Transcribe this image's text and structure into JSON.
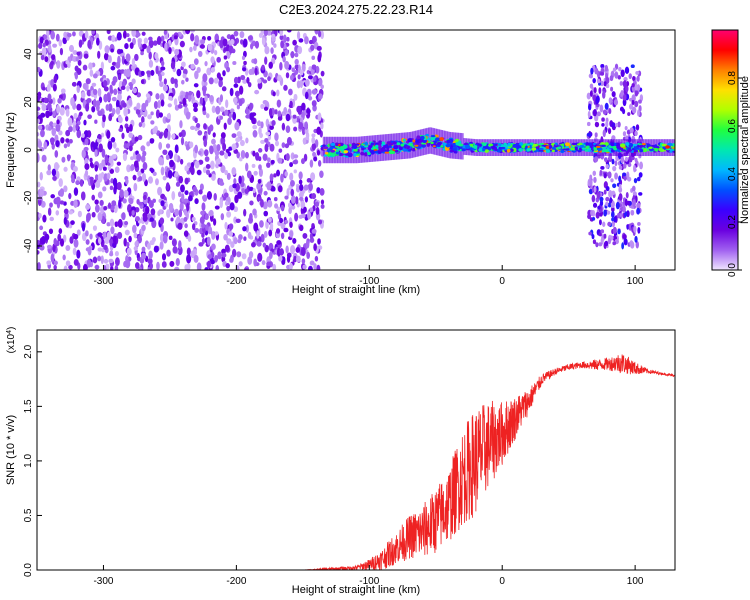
{
  "title": "C2E3.2024.275.22.23.R14",
  "chart_data": [
    {
      "type": "heatmap",
      "xlabel": "Height of straight line (km)",
      "ylabel": "Frequency (Hz)",
      "xlim": [
        -350,
        130
      ],
      "ylim": [
        -50,
        50
      ],
      "xticks": [
        -300,
        -200,
        -100,
        0,
        100
      ],
      "yticks": [
        -40,
        -20,
        0,
        20,
        40
      ],
      "colorbar": {
        "label": "Normalized spectral amplitude",
        "range": [
          0,
          1
        ],
        "ticks": [
          "0.0",
          "0.2",
          "0.4",
          "0.6",
          "0.8"
        ],
        "tick_values": [
          0,
          0.2,
          0.4,
          0.6,
          0.8
        ],
        "colors": [
          "#f0e6ff",
          "#a060f0",
          "#6a00e0",
          "#3a00ff",
          "#0050ff",
          "#00b8ff",
          "#00e8b0",
          "#20ff40",
          "#b0ff00",
          "#ffe000",
          "#ff8000",
          "#ff0000",
          "#ff0070"
        ]
      },
      "regions": [
        {
          "x": [
            -350,
            -135
          ],
          "y": [
            -50,
            50
          ],
          "amplitude": [
            0.03,
            0.2
          ]
        },
        {
          "x": [
            -135,
            130
          ],
          "y": [
            -4,
            4
          ],
          "amplitude": [
            0.15,
            0.85
          ]
        },
        {
          "x": [
            65,
            105
          ],
          "y": [
            -40,
            35
          ],
          "amplitude": [
            0.05,
            0.3
          ]
        }
      ],
      "band_center": [
        {
          "x": -135,
          "y": 0
        },
        {
          "x": -110,
          "y": 0
        },
        {
          "x": -90,
          "y": 1
        },
        {
          "x": -70,
          "y": 2
        },
        {
          "x": -55,
          "y": 4
        },
        {
          "x": -40,
          "y": 2
        },
        {
          "x": -20,
          "y": 1
        },
        {
          "x": 0,
          "y": 1
        },
        {
          "x": 50,
          "y": 1
        },
        {
          "x": 130,
          "y": 1
        }
      ]
    },
    {
      "type": "line",
      "xlabel": "Height of straight line (km)",
      "ylabel": "SNR (10 * v/v)",
      "scale_note": "(x10",
      "scale_exp": "4",
      "scale_close": ")",
      "xlim": [
        -350,
        130
      ],
      "ylim": [
        0,
        2.2
      ],
      "xticks": [
        -300,
        -200,
        -100,
        0,
        100
      ],
      "yticks": [
        "0.0",
        "0.5",
        "1.0",
        "1.5",
        "2.0"
      ],
      "ytick_values": [
        0,
        0.5,
        1.0,
        1.5,
        2.0
      ],
      "line_color": "#ee2222",
      "series": [
        {
          "x": [
            -350,
            -150,
            -110,
            -100,
            -90,
            -80,
            -70,
            -60,
            -50,
            -40,
            -30,
            -20,
            -10,
            0,
            10,
            20,
            30,
            40,
            50,
            60,
            70,
            80,
            90,
            100,
            110,
            120,
            130
          ],
          "y": [
            0.0,
            0.0,
            0.02,
            0.05,
            0.1,
            0.2,
            0.3,
            0.35,
            0.45,
            0.6,
            0.85,
            1.0,
            1.15,
            1.25,
            1.4,
            1.55,
            1.75,
            1.82,
            1.86,
            1.88,
            1.88,
            1.89,
            1.9,
            1.85,
            1.82,
            1.8,
            1.78
          ],
          "noise": [
            0,
            0,
            0.02,
            0.05,
            0.1,
            0.15,
            0.2,
            0.25,
            0.3,
            0.35,
            0.45,
            0.5,
            0.4,
            0.3,
            0.2,
            0.12,
            0.05,
            0.03,
            0.03,
            0.03,
            0.05,
            0.06,
            0.1,
            0.06,
            0.02,
            0.01,
            0.01
          ]
        }
      ]
    }
  ]
}
